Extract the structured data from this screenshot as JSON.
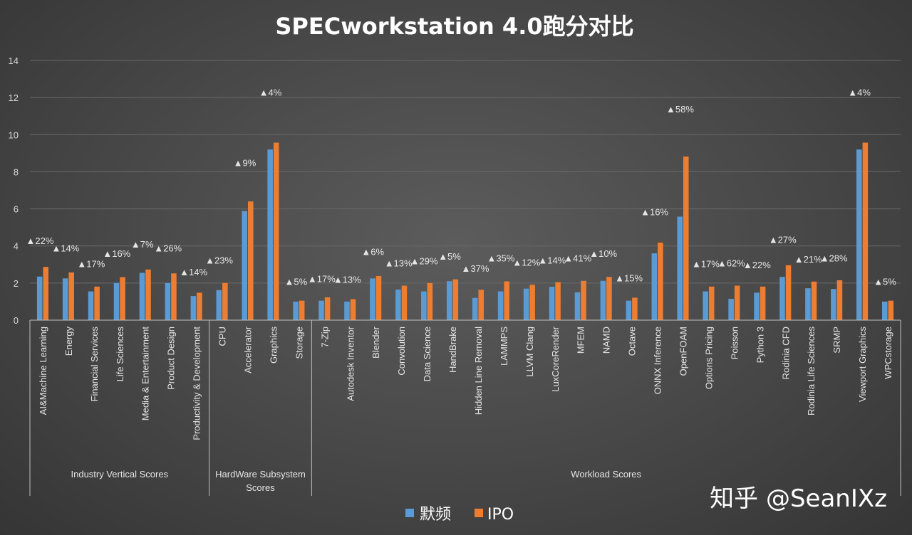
{
  "chart_data": {
    "type": "bar",
    "title": "SPECworkstation 4.0跑分对比",
    "ylim": [
      0,
      14
    ],
    "yticks": [
      0,
      2,
      4,
      6,
      8,
      10,
      12,
      14
    ],
    "grid": true,
    "legend_position": "bottom",
    "categories": [
      "AI&Machine Learning",
      "Energy",
      "Financial Services",
      "Life Sciences",
      "Media & Entertainment",
      "Product Design",
      "Productivity & Development",
      "CPU",
      "Accelerator",
      "Graphics",
      "Storage",
      "7-Zip",
      "Autodesk Inventor",
      "Blender",
      "Convolution",
      "Data Science",
      "HandBrake",
      "Hidden Line Removal",
      "LAMMPS",
      "LLVM Clang",
      "LuxCoreRender",
      "MFEM",
      "NAMD",
      "Octave",
      "ONNX Inference",
      "OpenFOAM",
      "Options Pricing",
      "Poisson",
      "Python 3",
      "Rodinia CFD",
      "Rodinia Life Sciences",
      "SRMP",
      "Viewport Graphics",
      "WPCstorage"
    ],
    "series": [
      {
        "name": "默频",
        "color": "#5b9bd5",
        "values": [
          2.35,
          2.25,
          1.55,
          2.0,
          2.55,
          2.0,
          1.3,
          1.62,
          5.88,
          9.2,
          1.0,
          1.05,
          1.0,
          2.25,
          1.65,
          1.55,
          2.1,
          1.2,
          1.55,
          1.7,
          1.8,
          1.5,
          2.12,
          1.05,
          3.6,
          5.58,
          1.55,
          1.15,
          1.48,
          2.33,
          1.72,
          1.68,
          9.2,
          1.0
        ]
      },
      {
        "name": "IPO",
        "color": "#ed7d31",
        "values": [
          2.87,
          2.57,
          1.81,
          2.32,
          2.73,
          2.52,
          1.48,
          2.0,
          6.4,
          9.57,
          1.05,
          1.23,
          1.13,
          2.38,
          1.86,
          2.0,
          2.2,
          1.64,
          2.09,
          1.91,
          2.05,
          2.12,
          2.33,
          1.21,
          4.18,
          8.82,
          1.81,
          1.86,
          1.81,
          2.96,
          2.08,
          2.15,
          9.57,
          1.05
        ]
      }
    ],
    "data_labels": [
      "▲22%",
      "▲14%",
      "▲17%",
      "▲16%",
      "▲7%",
      "▲26%",
      "▲14%",
      "▲23%",
      "▲9%",
      "▲4%",
      "▲5%",
      "▲17%",
      "▲13%",
      "▲6%",
      "▲13%",
      "▲29%",
      "▲5%",
      "▲37%",
      "▲35%",
      "▲12%",
      "▲14%",
      "▲41%",
      "▲10%",
      "▲15%",
      "▲16%",
      "▲58%",
      "▲17%",
      "▲62%",
      "▲22%",
      "▲27%",
      "▲21%",
      "▲28%",
      "▲4%",
      "▲5%"
    ],
    "label_y": [
      4.3,
      3.9,
      3.05,
      3.6,
      4.1,
      3.9,
      2.6,
      3.25,
      8.5,
      12.3,
      2.1,
      2.25,
      2.2,
      3.7,
      3.08,
      3.2,
      3.45,
      2.8,
      3.35,
      3.12,
      3.25,
      3.35,
      3.6,
      2.28,
      5.85,
      11.4,
      3.05,
      3.08,
      3.0,
      4.35,
      3.3,
      3.35,
      12.3,
      2.1
    ],
    "groups": [
      {
        "label": "Industry Vertical Scores",
        "start": 0,
        "end": 6
      },
      {
        "label": "HardWare Subsystem Scores",
        "start": 7,
        "end": 10
      },
      {
        "label": "Workload Scores",
        "start": 11,
        "end": 33
      }
    ]
  },
  "watermark": "知乎 @SeanIXz"
}
